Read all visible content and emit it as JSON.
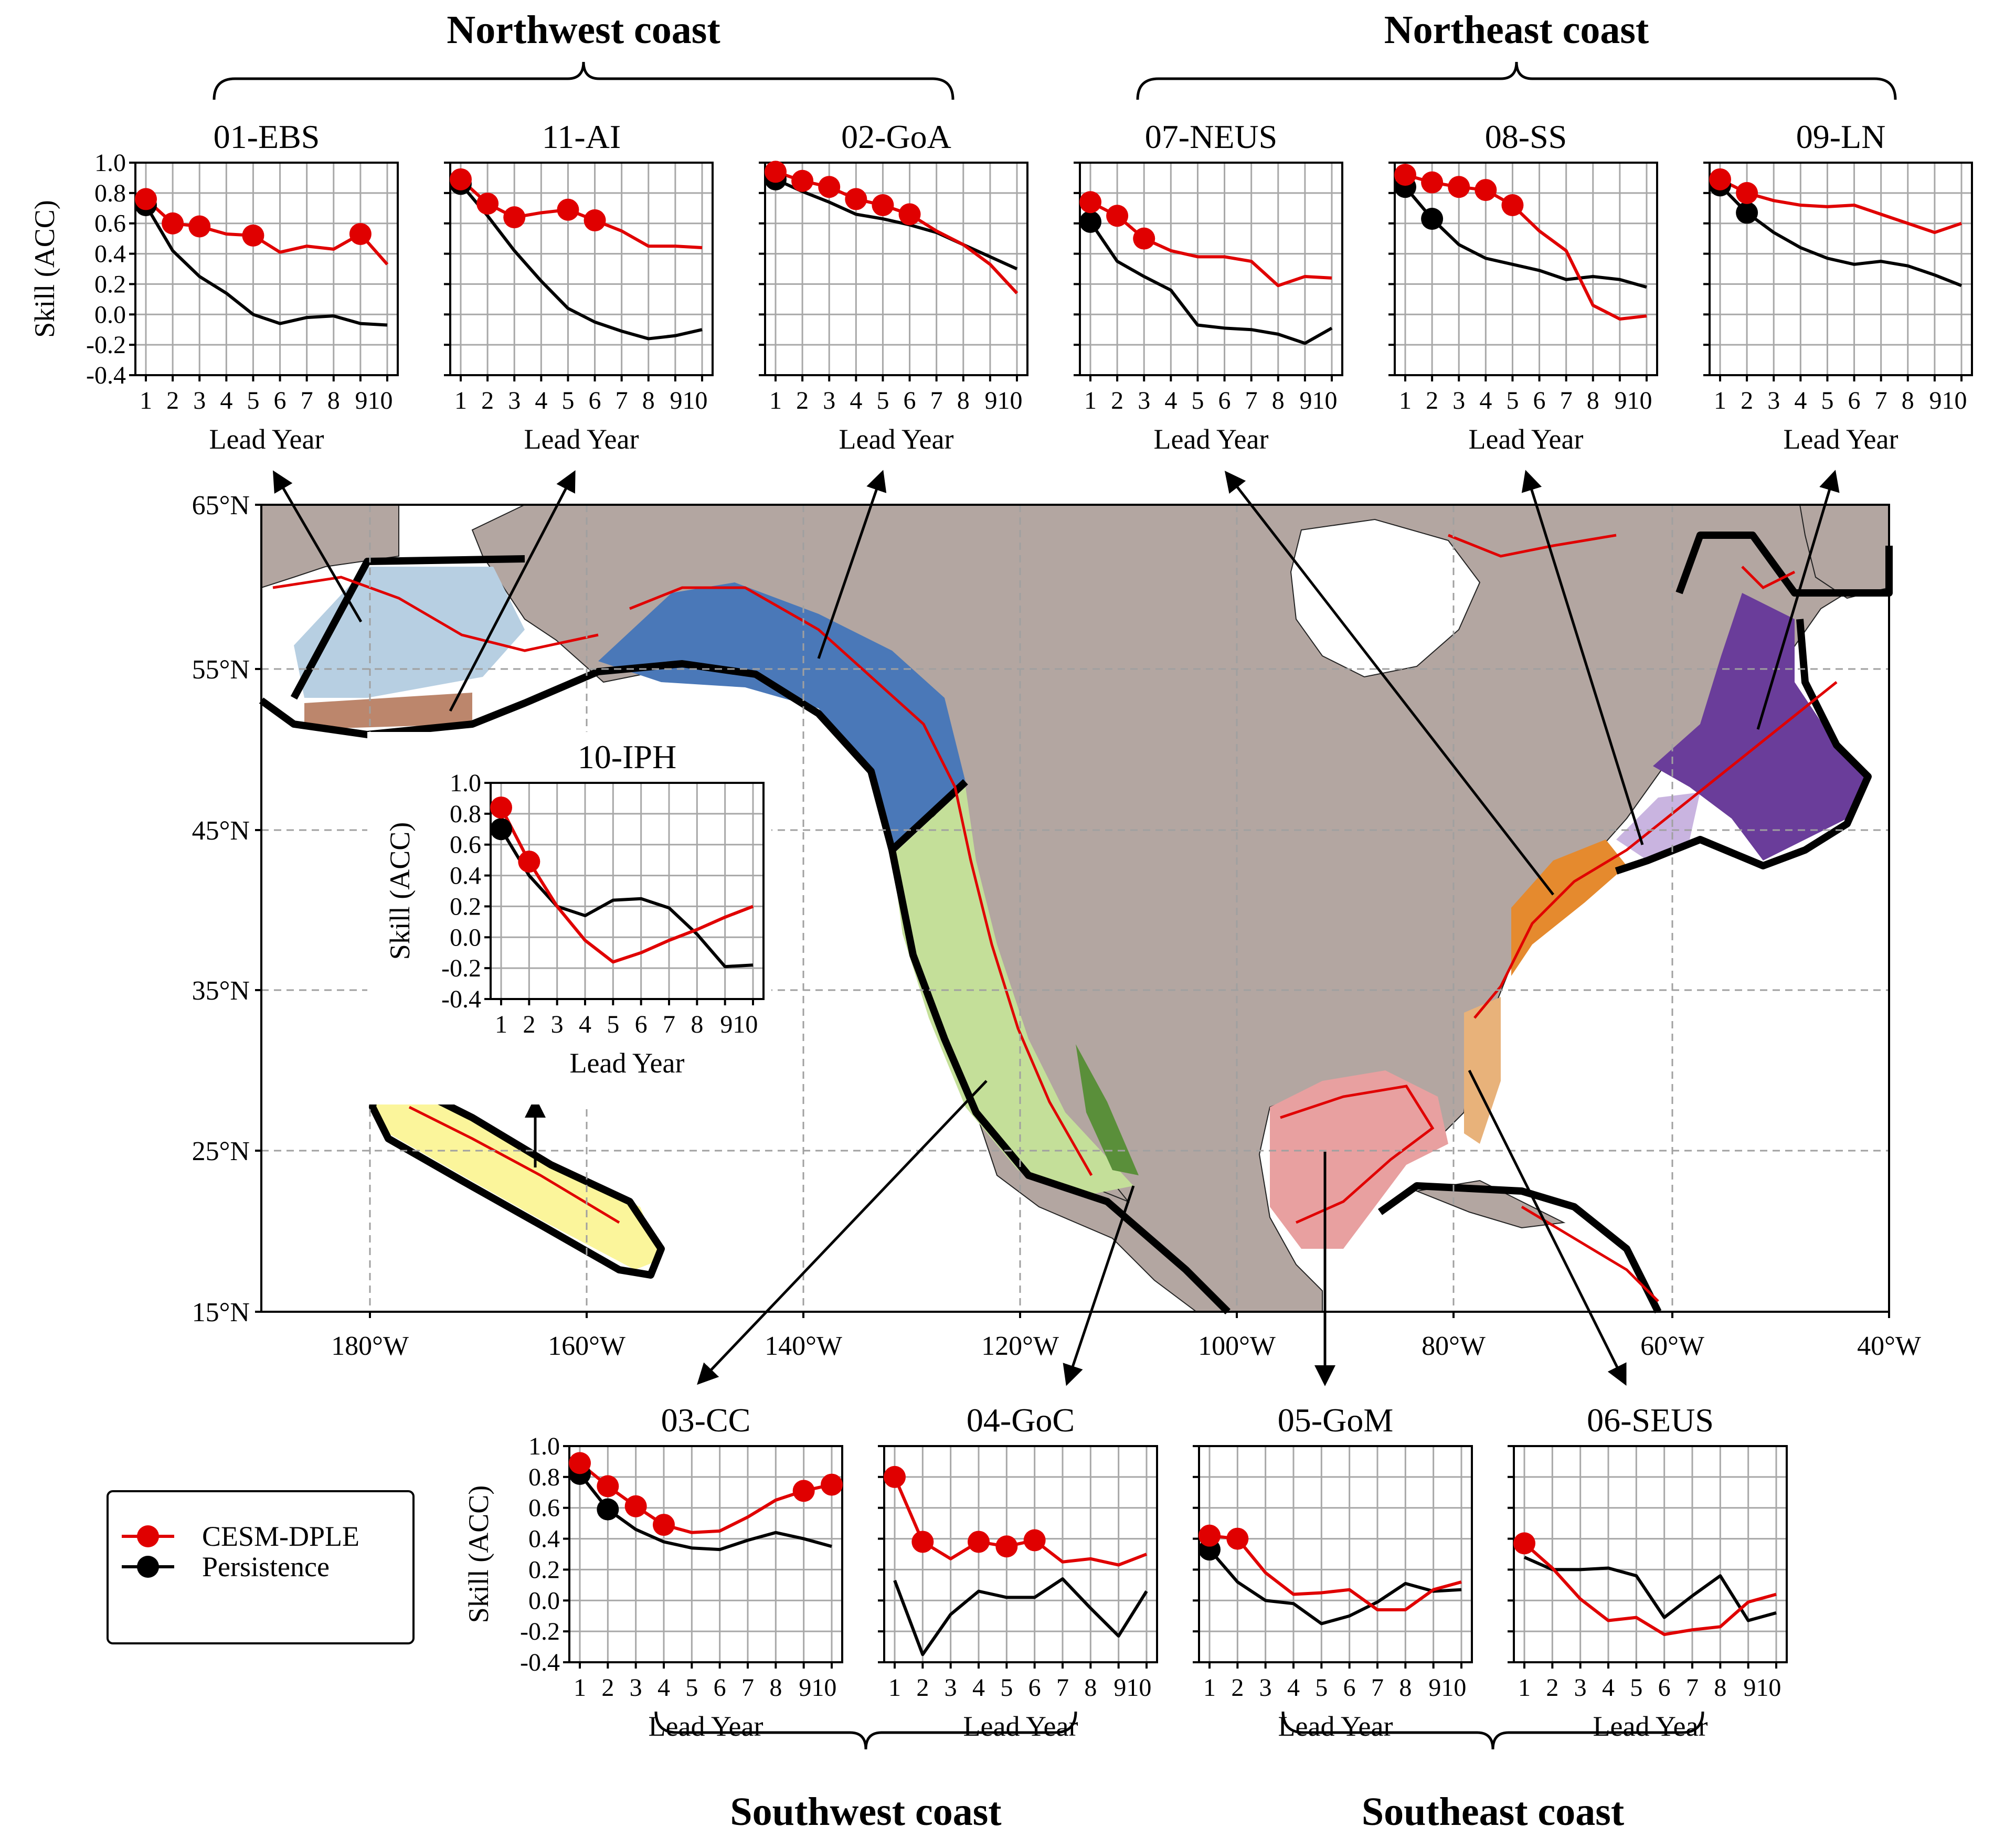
{
  "groups": {
    "northwest": "Northwest coast",
    "northeast": "Northeast coast",
    "southwest": "Southwest coast",
    "southeast": "Southeast coast"
  },
  "legend": {
    "items": [
      {
        "label": "CESM-DPLE",
        "color": "#e00000"
      },
      {
        "label": "Persistence",
        "color": "#000000"
      }
    ]
  },
  "map": {
    "lat_labels": [
      "65°N",
      "55°N",
      "45°N",
      "35°N",
      "25°N",
      "15°N"
    ],
    "lon_labels": [
      "180°W",
      "160°W",
      "140°W",
      "120°W",
      "100°W",
      "80°W",
      "60°W",
      "40°W"
    ],
    "colors": {
      "land": "#b3a6a1",
      "ocean": "#ffffff",
      "contour": "#e00000",
      "boundary": "#000000"
    }
  },
  "chart_data": [
    {
      "type": "line",
      "title": "01-EBS",
      "xlabel": "Lead Year",
      "ylabel": "Skill (ACC)",
      "ylim": [
        -0.4,
        1.0
      ],
      "x": [
        1,
        2,
        3,
        4,
        5,
        6,
        7,
        8,
        9,
        10
      ],
      "yticks": [
        "1.0",
        "0.8",
        "0.6",
        "0.4",
        "0.2",
        "0.0",
        "-0.2",
        "-0.4"
      ],
      "series": [
        {
          "name": "CESM-DPLE",
          "values": [
            0.76,
            0.6,
            0.58,
            0.53,
            0.52,
            0.41,
            0.45,
            0.43,
            0.53,
            0.33
          ],
          "significant": [
            1,
            2,
            3,
            5,
            9
          ]
        },
        {
          "name": "Persistence",
          "values": [
            0.72,
            0.42,
            0.25,
            0.14,
            0.0,
            -0.06,
            -0.02,
            -0.01,
            -0.06,
            -0.07
          ],
          "significant": [
            1
          ]
        }
      ]
    },
    {
      "type": "line",
      "title": "11-AI",
      "xlabel": "Lead Year",
      "ylabel": "Skill (ACC)",
      "ylim": [
        -0.4,
        1.0
      ],
      "x": [
        1,
        2,
        3,
        4,
        5,
        6,
        7,
        8,
        9,
        10
      ],
      "yticks": [
        "1.0",
        "0.8",
        "0.6",
        "0.4",
        "0.2",
        "0.0",
        "-0.2",
        "-0.4"
      ],
      "series": [
        {
          "name": "CESM-DPLE",
          "values": [
            0.89,
            0.73,
            0.64,
            0.67,
            0.69,
            0.62,
            0.55,
            0.45,
            0.45,
            0.44
          ],
          "significant": [
            1,
            2,
            3,
            5,
            6
          ]
        },
        {
          "name": "Persistence",
          "values": [
            0.86,
            0.65,
            0.42,
            0.22,
            0.04,
            -0.05,
            -0.11,
            -0.16,
            -0.14,
            -0.1
          ],
          "significant": [
            1
          ]
        }
      ]
    },
    {
      "type": "line",
      "title": "02-GoA",
      "xlabel": "Lead Year",
      "ylabel": "Skill (ACC)",
      "ylim": [
        -0.4,
        1.0
      ],
      "x": [
        1,
        2,
        3,
        4,
        5,
        6,
        7,
        8,
        9,
        10
      ],
      "yticks": [
        "1.0",
        "0.8",
        "0.6",
        "0.4",
        "0.2",
        "0.0",
        "-0.2",
        "-0.4"
      ],
      "series": [
        {
          "name": "CESM-DPLE",
          "values": [
            0.94,
            0.88,
            0.84,
            0.76,
            0.72,
            0.66,
            0.55,
            0.46,
            0.33,
            0.14
          ],
          "significant": [
            1,
            2,
            3,
            4,
            5,
            6
          ]
        },
        {
          "name": "Persistence",
          "values": [
            0.89,
            0.81,
            0.74,
            0.66,
            0.63,
            0.59,
            0.54,
            0.46,
            0.38,
            0.3
          ],
          "significant": [
            1
          ]
        }
      ]
    },
    {
      "type": "line",
      "title": "07-NEUS",
      "xlabel": "Lead Year",
      "ylabel": "Skill (ACC)",
      "ylim": [
        -0.4,
        1.0
      ],
      "x": [
        1,
        2,
        3,
        4,
        5,
        6,
        7,
        8,
        9,
        10
      ],
      "yticks": [
        "1.0",
        "0.8",
        "0.6",
        "0.4",
        "0.2",
        "0.0",
        "-0.2",
        "-0.4"
      ],
      "series": [
        {
          "name": "CESM-DPLE",
          "values": [
            0.74,
            0.65,
            0.5,
            0.42,
            0.38,
            0.38,
            0.35,
            0.19,
            0.25,
            0.24
          ],
          "significant": [
            1,
            2,
            3
          ]
        },
        {
          "name": "Persistence",
          "values": [
            0.61,
            0.35,
            0.25,
            0.16,
            -0.07,
            -0.09,
            -0.1,
            -0.13,
            -0.19,
            -0.09
          ],
          "significant": [
            1
          ]
        }
      ]
    },
    {
      "type": "line",
      "title": "08-SS",
      "xlabel": "Lead Year",
      "ylabel": "Skill (ACC)",
      "ylim": [
        -0.4,
        1.0
      ],
      "x": [
        1,
        2,
        3,
        4,
        5,
        6,
        7,
        8,
        9,
        10
      ],
      "yticks": [
        "1.0",
        "0.8",
        "0.6",
        "0.4",
        "0.2",
        "0.0",
        "-0.2",
        "-0.4"
      ],
      "series": [
        {
          "name": "CESM-DPLE",
          "values": [
            0.92,
            0.87,
            0.84,
            0.82,
            0.72,
            0.55,
            0.42,
            0.06,
            -0.03,
            -0.01
          ],
          "significant": [
            1,
            2,
            3,
            4,
            5
          ]
        },
        {
          "name": "Persistence",
          "values": [
            0.84,
            0.63,
            0.46,
            0.37,
            0.33,
            0.29,
            0.23,
            0.25,
            0.23,
            0.18
          ],
          "significant": [
            1,
            2
          ]
        }
      ]
    },
    {
      "type": "line",
      "title": "09-LN",
      "xlabel": "Lead Year",
      "ylabel": "Skill (ACC)",
      "ylim": [
        -0.4,
        1.0
      ],
      "x": [
        1,
        2,
        3,
        4,
        5,
        6,
        7,
        8,
        9,
        10
      ],
      "yticks": [
        "1.0",
        "0.8",
        "0.6",
        "0.4",
        "0.2",
        "0.0",
        "-0.2",
        "-0.4"
      ],
      "series": [
        {
          "name": "CESM-DPLE",
          "values": [
            0.89,
            0.8,
            0.75,
            0.72,
            0.71,
            0.72,
            0.66,
            0.6,
            0.54,
            0.6
          ],
          "significant": [
            1,
            2
          ]
        },
        {
          "name": "Persistence",
          "values": [
            0.85,
            0.67,
            0.54,
            0.44,
            0.37,
            0.33,
            0.35,
            0.32,
            0.26,
            0.19
          ],
          "significant": [
            1,
            2
          ]
        }
      ]
    },
    {
      "type": "line",
      "title": "10-IPH",
      "xlabel": "Lead Year",
      "ylabel": "Skill (ACC)",
      "ylim": [
        -0.4,
        1.0
      ],
      "x": [
        1,
        2,
        3,
        4,
        5,
        6,
        7,
        8,
        9,
        10
      ],
      "yticks": [
        "1.0",
        "0.8",
        "0.6",
        "0.4",
        "0.2",
        "0.0",
        "-0.2",
        "-0.4"
      ],
      "series": [
        {
          "name": "CESM-DPLE",
          "values": [
            0.84,
            0.49,
            0.2,
            -0.02,
            -0.16,
            -0.1,
            -0.02,
            0.05,
            0.13,
            0.2
          ],
          "significant": [
            1,
            2
          ]
        },
        {
          "name": "Persistence",
          "values": [
            0.7,
            0.4,
            0.2,
            0.14,
            0.24,
            0.25,
            0.19,
            0.02,
            -0.19,
            -0.18
          ],
          "significant": [
            1
          ]
        }
      ]
    },
    {
      "type": "line",
      "title": "03-CC",
      "xlabel": "Lead Year",
      "ylabel": "Skill (ACC)",
      "ylim": [
        -0.4,
        1.0
      ],
      "x": [
        1,
        2,
        3,
        4,
        5,
        6,
        7,
        8,
        9,
        10
      ],
      "yticks": [
        "1.0",
        "0.8",
        "0.6",
        "0.4",
        "0.2",
        "0.0",
        "-0.2",
        "-0.4"
      ],
      "series": [
        {
          "name": "CESM-DPLE",
          "values": [
            0.89,
            0.74,
            0.61,
            0.49,
            0.44,
            0.45,
            0.54,
            0.65,
            0.71,
            0.75
          ],
          "significant": [
            1,
            2,
            3,
            4,
            9,
            10
          ]
        },
        {
          "name": "Persistence",
          "values": [
            0.82,
            0.59,
            0.46,
            0.38,
            0.34,
            0.33,
            0.39,
            0.44,
            0.4,
            0.35
          ],
          "significant": [
            1,
            2
          ]
        }
      ]
    },
    {
      "type": "line",
      "title": "04-GoC",
      "xlabel": "Lead Year",
      "ylabel": "Skill (ACC)",
      "ylim": [
        -0.4,
        1.0
      ],
      "x": [
        1,
        2,
        3,
        4,
        5,
        6,
        7,
        8,
        9,
        10
      ],
      "yticks": [
        "1.0",
        "0.8",
        "0.6",
        "0.4",
        "0.2",
        "0.0",
        "-0.2",
        "-0.4"
      ],
      "series": [
        {
          "name": "CESM-DPLE",
          "values": [
            0.8,
            0.38,
            0.27,
            0.38,
            0.35,
            0.39,
            0.25,
            0.27,
            0.23,
            0.3
          ],
          "significant": [
            1,
            2,
            4,
            5,
            6
          ]
        },
        {
          "name": "Persistence",
          "values": [
            0.13,
            -0.35,
            -0.09,
            0.06,
            0.02,
            0.02,
            0.14,
            -0.05,
            -0.23,
            0.06
          ],
          "significant": []
        }
      ]
    },
    {
      "type": "line",
      "title": "05-GoM",
      "xlabel": "Lead Year",
      "ylabel": "Skill (ACC)",
      "ylim": [
        -0.4,
        1.0
      ],
      "x": [
        1,
        2,
        3,
        4,
        5,
        6,
        7,
        8,
        9,
        10
      ],
      "yticks": [
        "1.0",
        "0.8",
        "0.6",
        "0.4",
        "0.2",
        "0.0",
        "-0.2",
        "-0.4"
      ],
      "series": [
        {
          "name": "CESM-DPLE",
          "values": [
            0.42,
            0.4,
            0.18,
            0.04,
            0.05,
            0.07,
            -0.06,
            -0.06,
            0.07,
            0.12
          ],
          "significant": [
            1,
            2
          ]
        },
        {
          "name": "Persistence",
          "values": [
            0.33,
            0.12,
            0.0,
            -0.02,
            -0.15,
            -0.1,
            -0.01,
            0.11,
            0.06,
            0.07
          ],
          "significant": [
            1
          ]
        }
      ]
    },
    {
      "type": "line",
      "title": "06-SEUS",
      "xlabel": "Lead Year",
      "ylabel": "Skill (ACC)",
      "ylim": [
        -0.4,
        1.0
      ],
      "x": [
        1,
        2,
        3,
        4,
        5,
        6,
        7,
        8,
        9,
        10
      ],
      "yticks": [
        "1.0",
        "0.8",
        "0.6",
        "0.4",
        "0.2",
        "0.0",
        "-0.2",
        "-0.4"
      ],
      "series": [
        {
          "name": "CESM-DPLE",
          "values": [
            0.37,
            0.21,
            0.01,
            -0.13,
            -0.11,
            -0.22,
            -0.19,
            -0.17,
            -0.01,
            0.04
          ],
          "significant": [
            1
          ]
        },
        {
          "name": "Persistence",
          "values": [
            0.28,
            0.2,
            0.2,
            0.21,
            0.16,
            -0.11,
            0.03,
            0.16,
            -0.13,
            -0.08
          ],
          "significant": []
        }
      ]
    }
  ]
}
